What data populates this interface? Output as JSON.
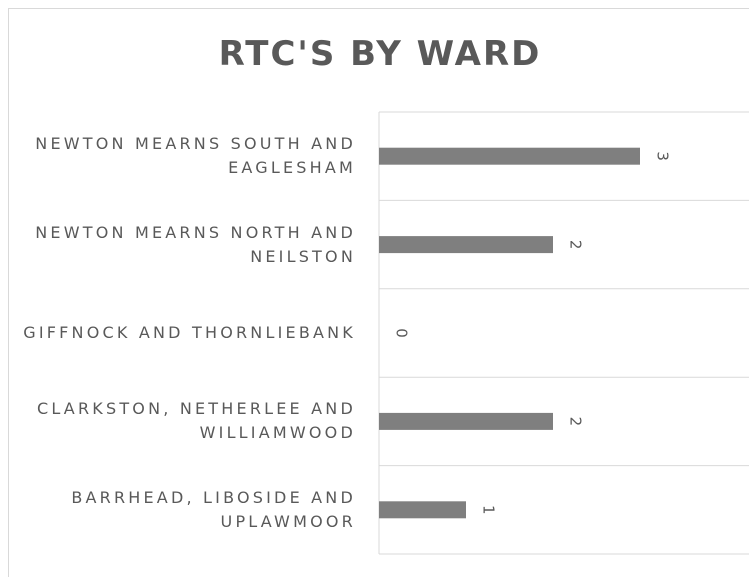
{
  "chart_data": {
    "type": "bar",
    "orientation": "horizontal",
    "title": "RTC'S BY WARD",
    "categories": [
      "NEWTON MEARNS SOUTH AND EAGLESHAM",
      "NEWTON MEARNS NORTH AND NEILSTON",
      "GIFFNOCK AND THORNLIEBANK",
      "CLARKSTON, NETHERLEE AND WILLIAMWOOD",
      "BARRHEAD, LIBOSIDE AND UPLAWMOOR"
    ],
    "values": [
      3,
      2,
      0,
      2,
      1
    ],
    "color": "#7f7f7f",
    "xlim": [
      0,
      4
    ]
  }
}
